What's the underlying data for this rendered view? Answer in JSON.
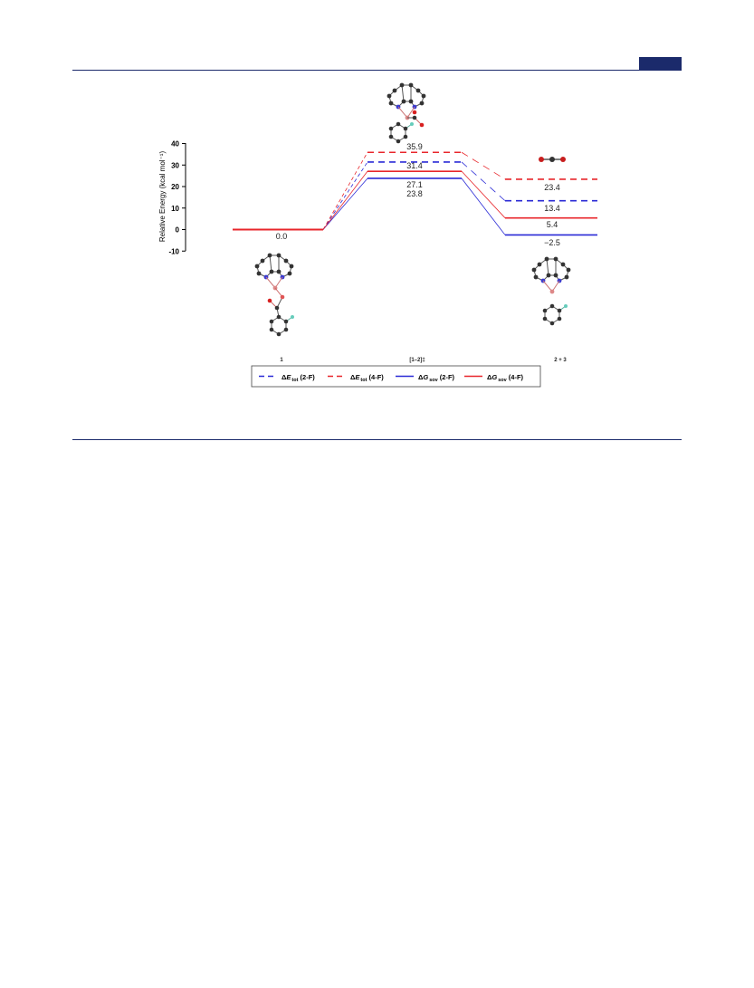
{
  "header": {
    "accent_color": "#1b2a6b"
  },
  "chart_data": {
    "type": "line",
    "ylabel": "Relative Energy (kcal mol⁻¹)",
    "ylim": [
      -10,
      40
    ],
    "yticks": [
      -10,
      0,
      10,
      20,
      30,
      40
    ],
    "categories": [
      "1",
      "[1–2]‡",
      "2 + 3"
    ],
    "series": [
      {
        "name": "ΔE tot (2-F)",
        "color": "#2a2ad6",
        "dashed": true,
        "values": [
          0.0,
          31.4,
          13.4
        ]
      },
      {
        "name": "ΔE tot (4-F)",
        "color": "#e8262b",
        "dashed": true,
        "values": [
          0.0,
          35.9,
          23.4
        ]
      },
      {
        "name": "ΔG sov (2-F)",
        "color": "#2a2ad6",
        "dashed": false,
        "values": [
          0.0,
          23.8,
          -2.5
        ]
      },
      {
        "name": "ΔG sov (4-F)",
        "color": "#e8262b",
        "dashed": false,
        "values": [
          0.0,
          27.1,
          5.4
        ]
      }
    ],
    "point_labels": {
      "start": "0.0",
      "ts": [
        "35.9",
        "31.4",
        "27.1",
        "23.8"
      ],
      "product": [
        "23.4",
        "13.4",
        "5.4",
        "−2.5"
      ]
    },
    "legend": {
      "placement": "bottom",
      "items": [
        {
          "main": "Δ",
          "italic": "E",
          "sub": "tot",
          "tail": " (2-F)"
        },
        {
          "main": "Δ",
          "italic": "E",
          "sub": "tot",
          "tail": " (4-F)"
        },
        {
          "main": "Δ",
          "italic": "G",
          "sub": "sov",
          "tail": " (2-F)"
        },
        {
          "main": "Δ",
          "italic": "G",
          "sub": "sov",
          "tail": " (4-F)"
        }
      ]
    },
    "grid": false
  }
}
